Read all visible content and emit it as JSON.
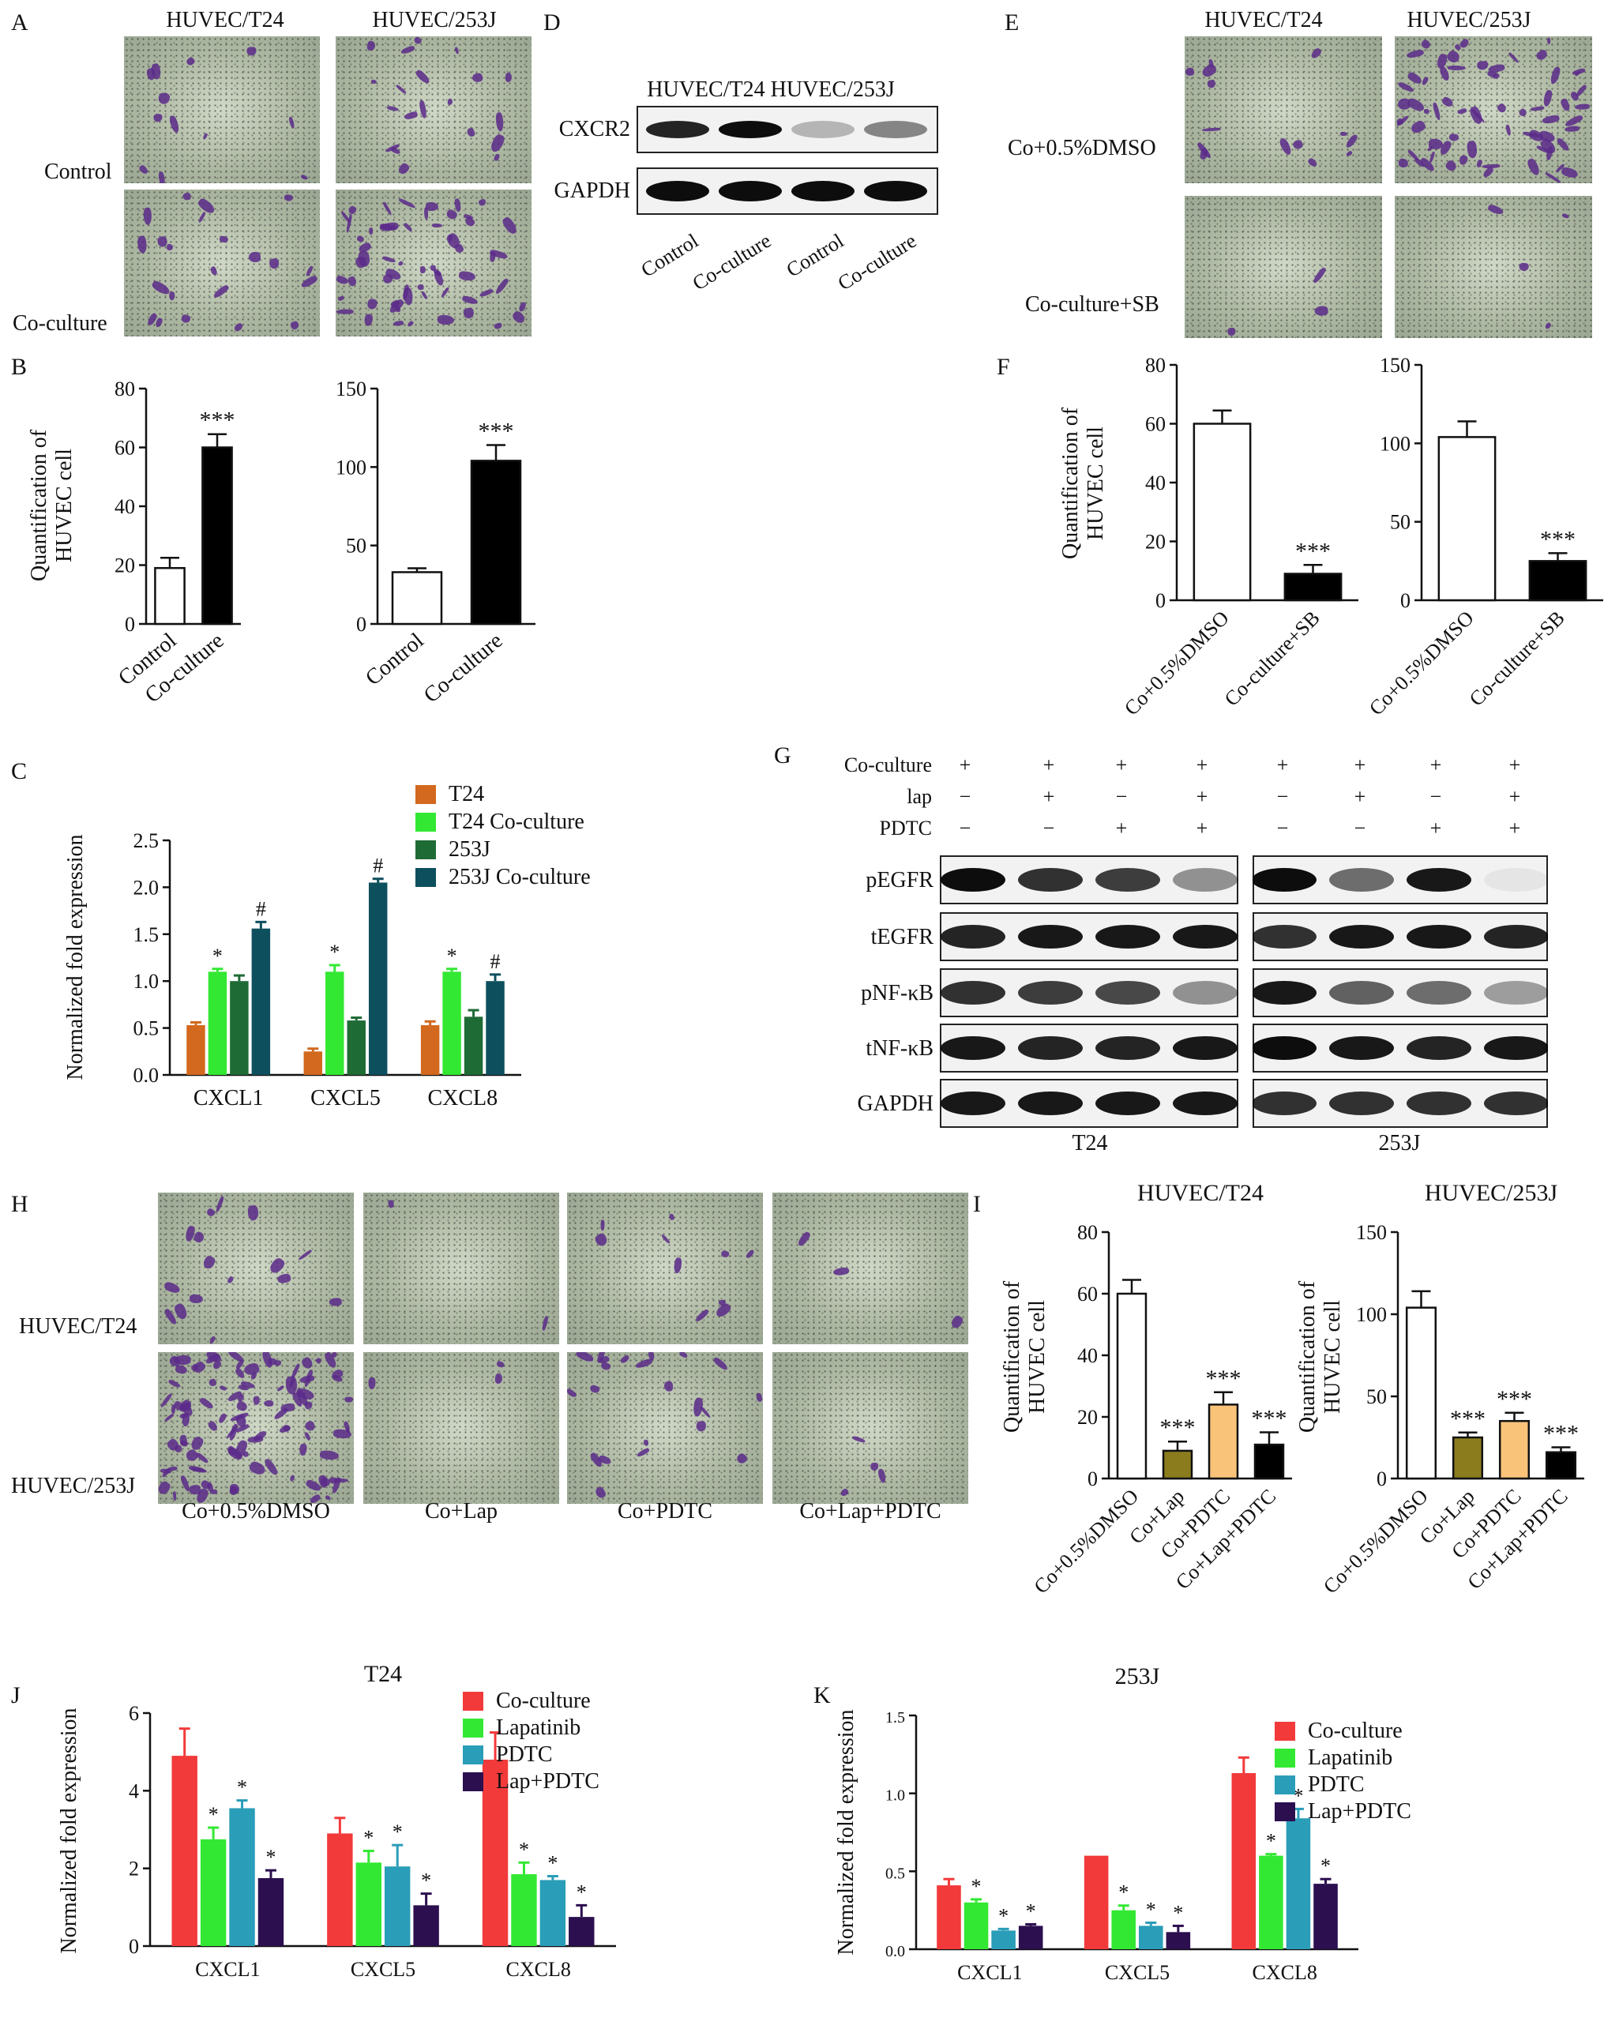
{
  "panel_letters": [
    "A",
    "B",
    "C",
    "D",
    "E",
    "F",
    "G",
    "H",
    "I",
    "J",
    "K"
  ],
  "panelA": {
    "col_labels": [
      "HUVEC/T24",
      "HUVEC/253J"
    ],
    "row_labels": [
      "Control",
      "Co-culture"
    ]
  },
  "panelD": {
    "header": "HUVEC/T24 HUVEC/253J",
    "row_labels": [
      "CXCR2",
      "GAPDH"
    ],
    "lane_labels": [
      "Control",
      "Co-culture",
      "Control",
      "Co-culture"
    ],
    "band_intensity": {
      "CXCR2": [
        0.85,
        0.95,
        0.25,
        0.45
      ],
      "GAPDH": [
        0.95,
        0.95,
        0.95,
        0.95
      ]
    }
  },
  "panelE": {
    "col_labels": [
      "HUVEC/T24",
      "HUVEC/253J"
    ],
    "row_labels": [
      "Co+0.5%DMSO",
      "Co-culture+SB"
    ]
  },
  "panelG": {
    "rows": [
      {
        "label": "Co-culture",
        "signs": [
          "+",
          "+",
          "+",
          "+",
          "+",
          "+",
          "+",
          "+"
        ]
      },
      {
        "label": "lap",
        "signs": [
          "−",
          "+",
          "−",
          "+",
          "−",
          "+",
          "−",
          "+"
        ]
      },
      {
        "label": "PDTC",
        "signs": [
          "−",
          "−",
          "+",
          "+",
          "−",
          "−",
          "+",
          "+"
        ]
      }
    ],
    "blot_labels": [
      "pEGFR",
      "tEGFR",
      "pNF-κB",
      "tNF-κB",
      "GAPDH"
    ],
    "group_labels": [
      "T24",
      "253J"
    ],
    "band_intensity": {
      "pEGFR": [
        0.95,
        0.8,
        0.75,
        0.4,
        0.95,
        0.55,
        0.9,
        0.05
      ],
      "tEGFR": [
        0.85,
        0.9,
        0.9,
        0.9,
        0.8,
        0.9,
        0.9,
        0.85
      ],
      "pNF-κB": [
        0.8,
        0.75,
        0.7,
        0.4,
        0.9,
        0.6,
        0.55,
        0.35
      ],
      "tNF-κB": [
        0.9,
        0.85,
        0.85,
        0.9,
        0.95,
        0.9,
        0.85,
        0.9
      ],
      "GAPDH": [
        0.9,
        0.9,
        0.9,
        0.9,
        0.8,
        0.8,
        0.8,
        0.8
      ]
    }
  },
  "panelH": {
    "row_labels": [
      "HUVEC/T24",
      "HUVEC/253J"
    ],
    "col_labels": [
      "Co+0.5%DMSO",
      "Co+Lap",
      "Co+PDTC",
      "Co+Lap+PDTC"
    ]
  },
  "chart_data": [
    {
      "id": "B1",
      "type": "bar",
      "categories": [
        "Control",
        "Co-culture"
      ],
      "values": [
        19,
        60
      ],
      "errors": [
        3.5,
        4.5
      ],
      "ylabel": "Quantification of HUVEC cell",
      "ylim": [
        0,
        80
      ],
      "yticks": [
        0,
        20,
        40,
        60,
        80
      ],
      "colors": [
        "#ffffff",
        "#000000"
      ],
      "annotations": [
        "",
        "***"
      ]
    },
    {
      "id": "B2",
      "type": "bar",
      "categories": [
        "Control",
        "Co-culture"
      ],
      "values": [
        33,
        104
      ],
      "errors": [
        2.5,
        10
      ],
      "ylabel": "",
      "ylim": [
        0,
        150
      ],
      "yticks": [
        0,
        50,
        100,
        150
      ],
      "colors": [
        "#ffffff",
        "#000000"
      ],
      "annotations": [
        "",
        "***"
      ]
    },
    {
      "id": "C",
      "type": "bar",
      "categories": [
        "CXCL1",
        "CXCL5",
        "CXCL8"
      ],
      "ylabel": "Normalized fold expression",
      "ylim": [
        0,
        2.5
      ],
      "yticks": [
        "0.0",
        "0.5",
        "1.0",
        "1.5",
        "2.0",
        "2.5"
      ],
      "series": [
        {
          "name": "T24",
          "color": "#d2691e",
          "values": [
            0.53,
            0.25,
            0.53
          ],
          "errors": [
            0.03,
            0.03,
            0.04
          ]
        },
        {
          "name": "T24 Co-culture",
          "color": "#33e833",
          "values": [
            1.1,
            1.1,
            1.1
          ],
          "errors": [
            0.03,
            0.07,
            0.03
          ]
        },
        {
          "name": "253J",
          "color": "#1f6b35",
          "values": [
            1.0,
            0.58,
            0.62
          ],
          "errors": [
            0.06,
            0.03,
            0.07
          ]
        },
        {
          "name": "253J Co-culture",
          "color": "#0e4f5e",
          "values": [
            1.56,
            2.05,
            1.0
          ],
          "errors": [
            0.07,
            0.04,
            0.07
          ]
        }
      ],
      "annotations": [
        [
          "",
          "*",
          "",
          "#"
        ],
        [
          "",
          "*",
          "",
          "#"
        ],
        [
          "",
          "*",
          "",
          "#"
        ]
      ]
    },
    {
      "id": "F1",
      "type": "bar",
      "categories": [
        "Co+0.5%DMSO",
        "Co-culture+SB"
      ],
      "values": [
        60,
        9
      ],
      "errors": [
        4.5,
        3
      ],
      "ylabel": "Quantification of HUVEC cell",
      "ylim": [
        0,
        80
      ],
      "yticks": [
        0,
        20,
        40,
        60,
        80
      ],
      "colors": [
        "#ffffff",
        "#000000"
      ],
      "annotations": [
        "",
        "***"
      ]
    },
    {
      "id": "F2",
      "type": "bar",
      "categories": [
        "Co+0.5%DMSO",
        "Co-culture+SB"
      ],
      "values": [
        104,
        25
      ],
      "errors": [
        10,
        5
      ],
      "ylabel": "",
      "ylim": [
        0,
        150
      ],
      "yticks": [
        0,
        50,
        100,
        150
      ],
      "colors": [
        "#ffffff",
        "#000000"
      ],
      "annotations": [
        "",
        "***"
      ]
    },
    {
      "id": "I1",
      "type": "bar",
      "title": "HUVEC/T24",
      "categories": [
        "Co+0.5%DMSO",
        "Co+Lap",
        "Co+PDTC",
        "Co+Lap+PDTC"
      ],
      "values": [
        60,
        9,
        24,
        11
      ],
      "errors": [
        4.5,
        3,
        4,
        4
      ],
      "ylabel": "Quantification of HUVEC cell",
      "ylim": [
        0,
        80
      ],
      "yticks": [
        0,
        20,
        40,
        60,
        80
      ],
      "colors": [
        "#ffffff",
        "#8b7d1e",
        "#f9c37a",
        "#000000"
      ],
      "annotations": [
        "",
        "***",
        "***",
        "***"
      ]
    },
    {
      "id": "I2",
      "type": "bar",
      "title": "HUVEC/253J",
      "categories": [
        "Co+0.5%DMSO",
        "Co+Lap",
        "Co+PDTC",
        "Co+Lap+PDTC"
      ],
      "values": [
        104,
        25,
        35,
        16
      ],
      "errors": [
        10,
        3,
        5,
        3
      ],
      "ylabel": "Quantification of HUVEC cell",
      "ylim": [
        0,
        150
      ],
      "yticks": [
        0,
        50,
        100,
        150
      ],
      "colors": [
        "#ffffff",
        "#8b7d1e",
        "#f9c37a",
        "#000000"
      ],
      "annotations": [
        "",
        "***",
        "***",
        "***"
      ]
    },
    {
      "id": "J",
      "type": "bar",
      "title": "T24",
      "categories": [
        "CXCL1",
        "CXCL5",
        "CXCL8"
      ],
      "ylabel": "Normalized fold expression",
      "ylim": [
        0,
        6
      ],
      "yticks": [
        0,
        2,
        4,
        6
      ],
      "series": [
        {
          "name": "Co-culture",
          "color": "#f23a3a",
          "values": [
            4.9,
            2.9,
            4.8
          ],
          "errors": [
            0.7,
            0.4,
            0.7
          ]
        },
        {
          "name": "Lapatinib",
          "color": "#33e833",
          "values": [
            2.75,
            2.15,
            1.85
          ],
          "errors": [
            0.3,
            0.3,
            0.3
          ]
        },
        {
          "name": "PDTC",
          "color": "#2a9db8",
          "values": [
            3.55,
            2.05,
            1.7
          ],
          "errors": [
            0.2,
            0.55,
            0.1
          ]
        },
        {
          "name": "Lap+PDTC",
          "color": "#2b0f4f",
          "values": [
            1.75,
            1.05,
            0.75
          ],
          "errors": [
            0.2,
            0.3,
            0.3
          ]
        }
      ],
      "annotations": [
        [
          "",
          "*",
          "*",
          "*"
        ],
        [
          "",
          "*",
          "*",
          "*"
        ],
        [
          "",
          "*",
          "*",
          "*"
        ]
      ]
    },
    {
      "id": "K",
      "type": "bar",
      "title": "253J",
      "categories": [
        "CXCL1",
        "CXCL5",
        "CXCL8"
      ],
      "ylabel": "Normalized fold expression",
      "ylim": [
        0,
        1.5
      ],
      "yticks": [
        "0.0",
        "0.5",
        "1.0",
        "1.5"
      ],
      "series": [
        {
          "name": "Co-culture",
          "color": "#f23a3a",
          "values": [
            0.41,
            0.6,
            1.13
          ],
          "errors": [
            0.04,
            0,
            0.1
          ]
        },
        {
          "name": "Lapatinib",
          "color": "#33e833",
          "values": [
            0.3,
            0.25,
            0.6
          ],
          "errors": [
            0.02,
            0.03,
            0.01
          ]
        },
        {
          "name": "PDTC",
          "color": "#2a9db8",
          "values": [
            0.12,
            0.15,
            0.84
          ],
          "errors": [
            0.01,
            0.02,
            0.06
          ]
        },
        {
          "name": "Lap+PDTC",
          "color": "#2b0f4f",
          "values": [
            0.15,
            0.11,
            0.42
          ],
          "errors": [
            0.01,
            0.04,
            0.03
          ]
        }
      ],
      "annotations": [
        [
          "",
          "*",
          "*",
          "*"
        ],
        [
          "",
          "*",
          "*",
          "*"
        ],
        [
          "",
          "*",
          "*",
          "*"
        ]
      ]
    }
  ]
}
